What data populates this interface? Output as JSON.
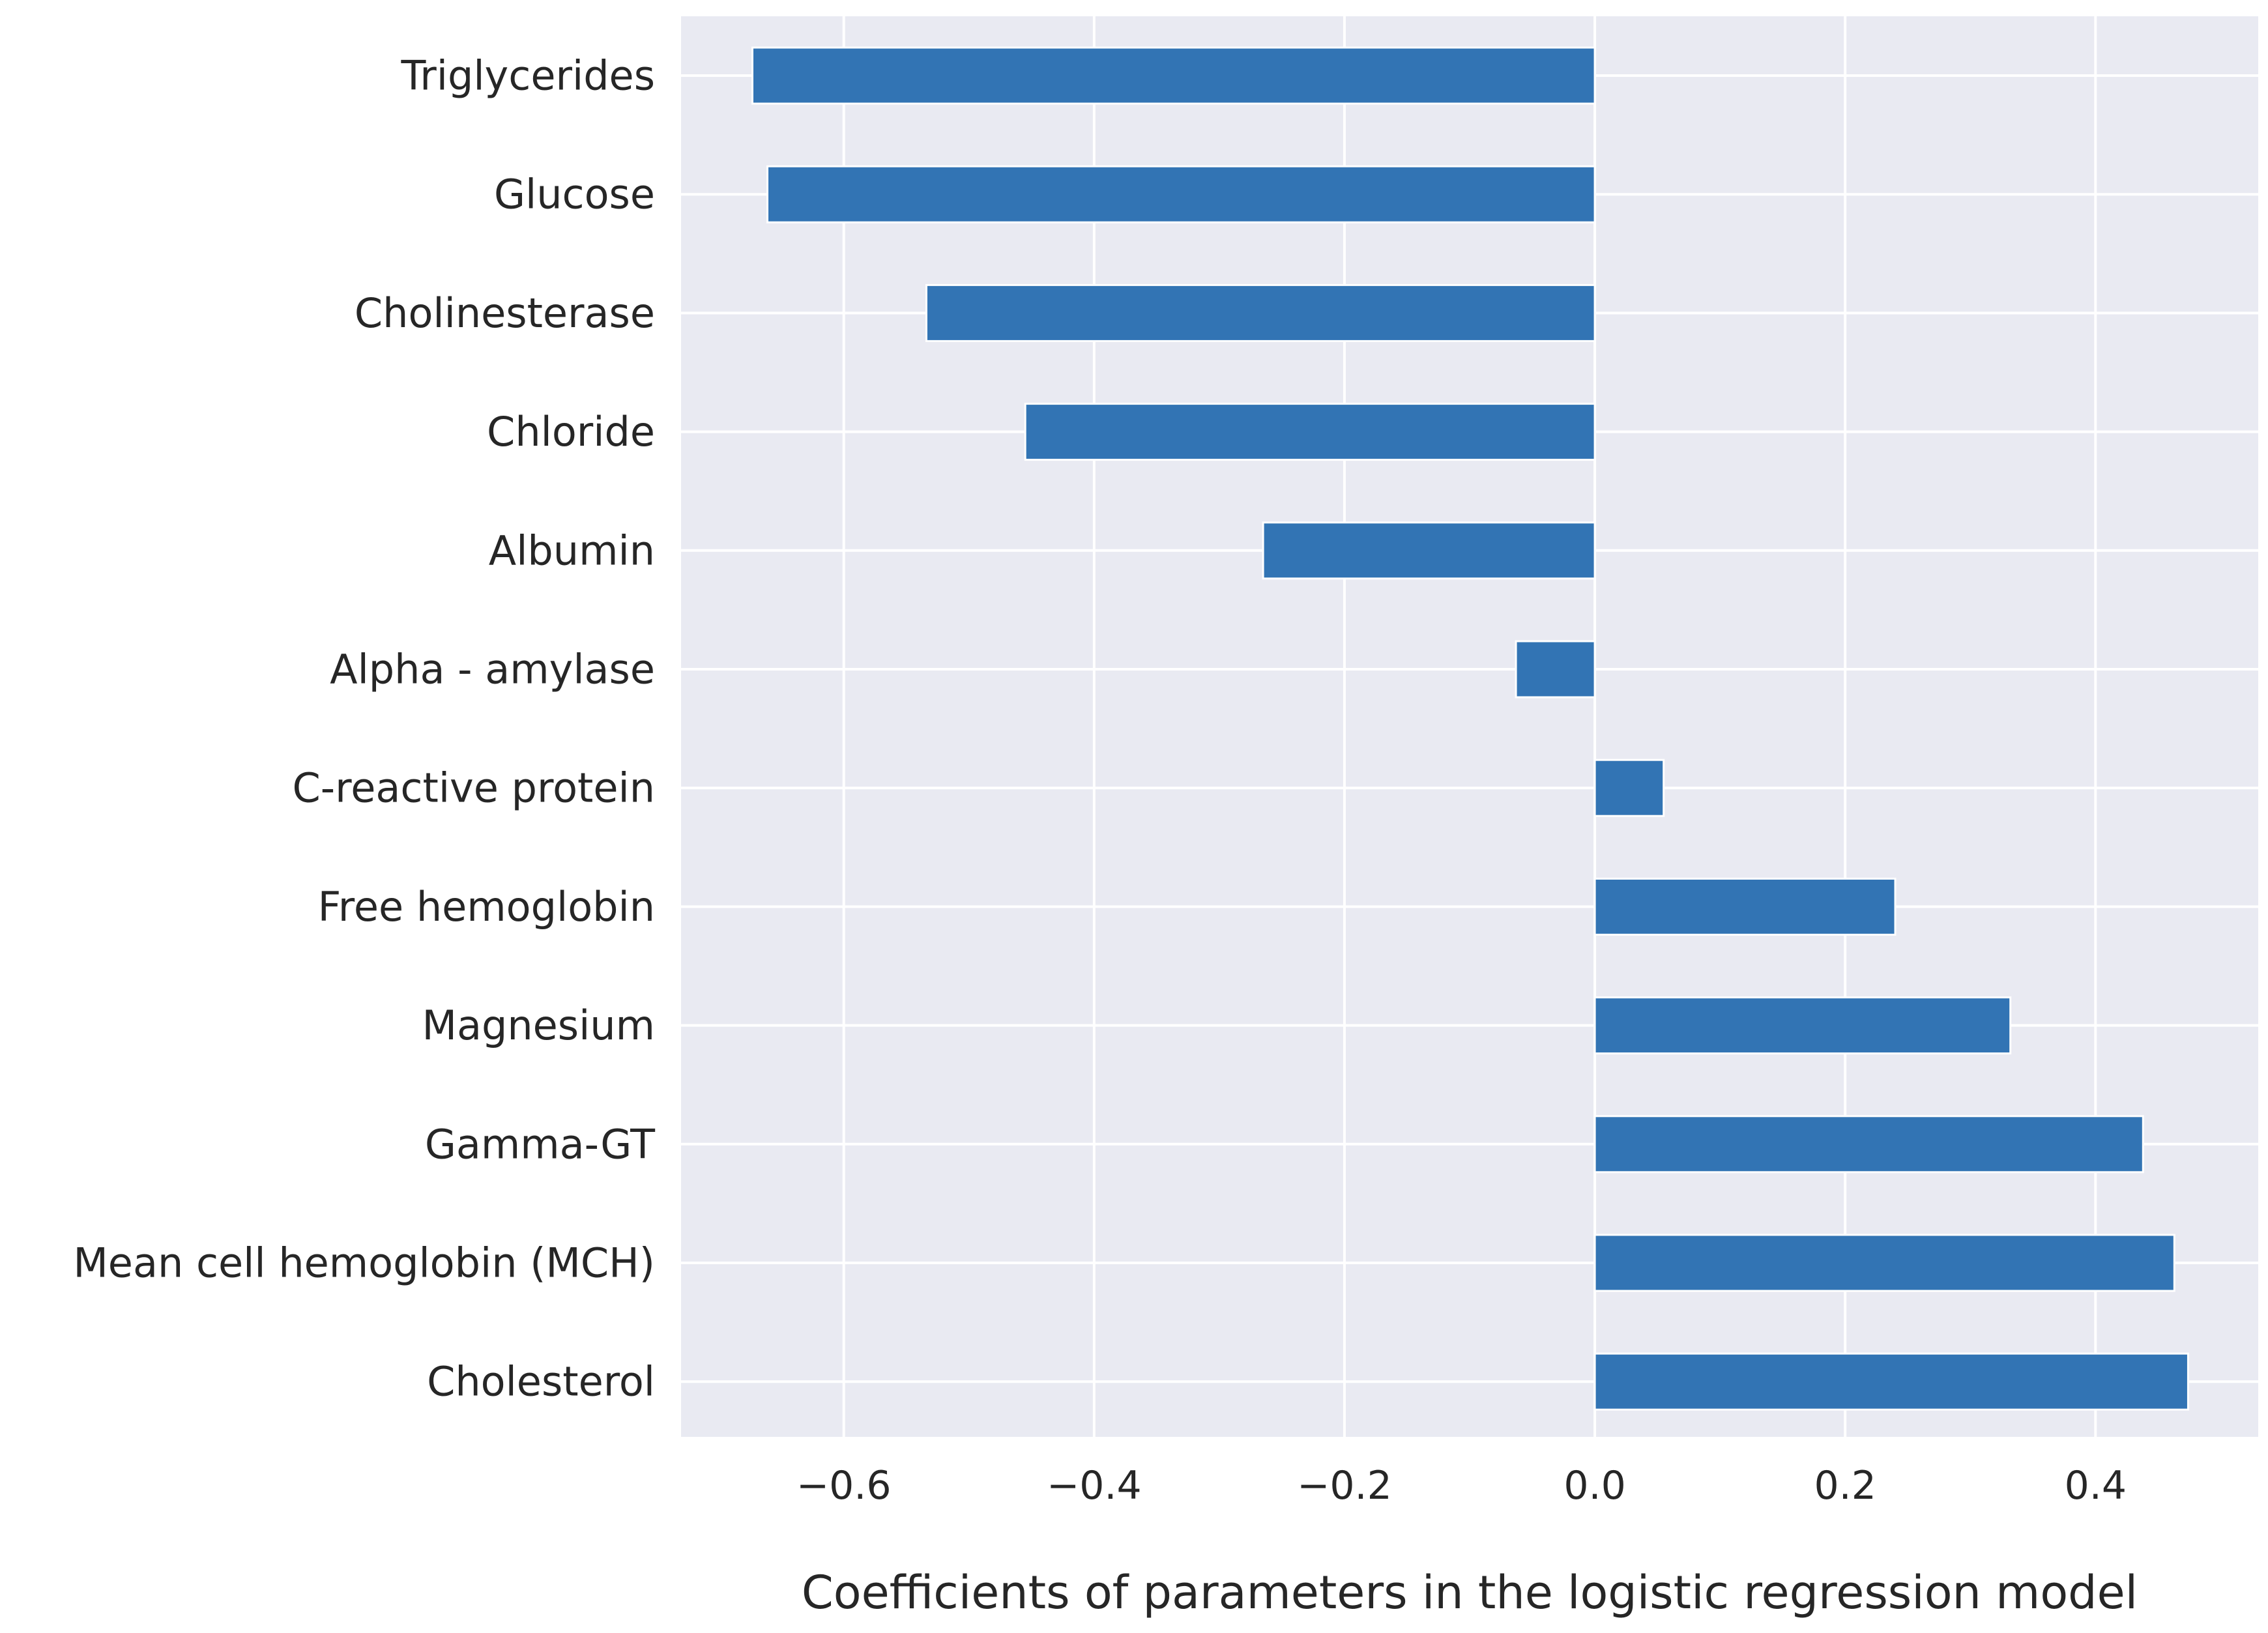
{
  "chart_data": {
    "type": "bar",
    "orientation": "horizontal",
    "title": "",
    "xlabel": "Coefficients of parameters in the logistic regression model",
    "ylabel": "",
    "xlim": [
      -0.73,
      0.53
    ],
    "xticks": [
      -0.6,
      -0.4,
      -0.2,
      0.0,
      0.2,
      0.4
    ],
    "xtick_labels": [
      "−0.6",
      "−0.4",
      "−0.2",
      "0.0",
      "0.2",
      "0.4"
    ],
    "grid": true,
    "categories": [
      "Triglycerides",
      "Glucose",
      "Cholinesterase",
      "Chloride",
      "Albumin",
      "Alpha - amylase",
      "C-reactive protein",
      "Free hemoglobin",
      "Magnesium",
      "Gamma-GT",
      "Mean cell hemoglobin (MCH)",
      "Cholesterol"
    ],
    "values": [
      -0.673,
      -0.661,
      -0.534,
      -0.455,
      -0.265,
      -0.063,
      0.055,
      0.24,
      0.332,
      0.438,
      0.463,
      0.474
    ],
    "colors": {
      "bar": "#3274b4",
      "plot_background": "#e9eaf2",
      "grid": "#ffffff",
      "text": "#262626"
    }
  }
}
